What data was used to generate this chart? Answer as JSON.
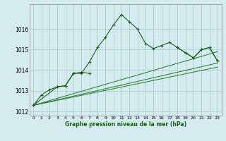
{
  "title": "Graphe pression niveau de la mer (hPa)",
  "background_color": "#d4ecf0",
  "grid_color": "#aacccc",
  "line_color_dark": "#1a5c1a",
  "line_color_medium": "#2e7d32",
  "xlim": [
    -0.5,
    23.5
  ],
  "ylim": [
    1011.8,
    1017.2
  ],
  "xticks": [
    0,
    1,
    2,
    3,
    4,
    5,
    6,
    7,
    8,
    9,
    10,
    11,
    12,
    13,
    14,
    15,
    16,
    17,
    18,
    19,
    20,
    21,
    22,
    23
  ],
  "yticks": [
    1012,
    1013,
    1014,
    1015,
    1016
  ],
  "series1_x": [
    0,
    1,
    2,
    3,
    4,
    5,
    6,
    7,
    8,
    9,
    10,
    11,
    12,
    13,
    14,
    15,
    16,
    17,
    18,
    19,
    20,
    21,
    22,
    23
  ],
  "series1_y": [
    1012.3,
    1012.8,
    1013.05,
    1013.2,
    1013.25,
    1013.85,
    1013.85,
    1014.4,
    1015.1,
    1015.6,
    1016.2,
    1016.7,
    1016.35,
    1016.0,
    1015.3,
    1015.05,
    1015.2,
    1015.35,
    1015.1,
    1014.85,
    1014.6,
    1015.0,
    1015.1,
    1014.45
  ],
  "series2_x": [
    0,
    3,
    4,
    5,
    6,
    7
  ],
  "series2_y": [
    1012.3,
    1013.2,
    1013.25,
    1013.85,
    1013.9,
    1013.85
  ],
  "series3_x": [
    0,
    23
  ],
  "series3_y": [
    1012.3,
    1014.15
  ],
  "series4_x": [
    0,
    23
  ],
  "series4_y": [
    1012.3,
    1014.35
  ],
  "series5_x": [
    0,
    23
  ],
  "series5_y": [
    1012.3,
    1014.9
  ],
  "series6_x": [
    18,
    19,
    20,
    21,
    22,
    23
  ],
  "series6_y": [
    1015.1,
    1014.85,
    1014.6,
    1015.0,
    1015.1,
    1014.45
  ]
}
